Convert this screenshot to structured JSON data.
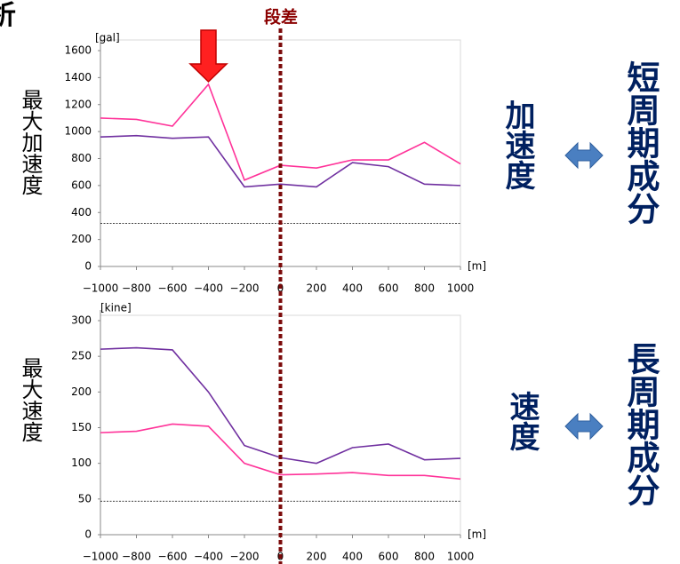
{
  "corner_text": "析",
  "step_label": "段差",
  "side_labels": {
    "accel_term": "加速度",
    "short_period": "短周期成分",
    "velocity_term": "速度",
    "long_period": "長周期成分"
  },
  "chart_data": [
    {
      "type": "line",
      "y_axis_title": "最大加速度",
      "y_unit": "[gal]",
      "x_unit": "[m]",
      "x": [
        -1000,
        -800,
        -600,
        -400,
        -200,
        0,
        200,
        400,
        600,
        800,
        1000
      ],
      "series": [
        {
          "color": "#ff3399",
          "values": [
            1100,
            1090,
            1040,
            1350,
            640,
            750,
            730,
            790,
            790,
            920,
            760
          ]
        },
        {
          "color": "#7030a0",
          "values": [
            960,
            970,
            950,
            960,
            590,
            610,
            590,
            770,
            740,
            610,
            600
          ]
        }
      ],
      "reference_line": 320,
      "xlim": [
        -1000,
        1000
      ],
      "xticks": [
        {
          "value": -1000,
          "label": "−1000"
        },
        {
          "value": -800,
          "label": "−800"
        },
        {
          "value": -600,
          "label": "−600"
        },
        {
          "value": -400,
          "label": "−400"
        },
        {
          "value": -200,
          "label": "−200"
        },
        0,
        200,
        400,
        600,
        800,
        1000
      ],
      "ylim": [
        0,
        1600
      ],
      "yticks": [
        0,
        200,
        400,
        600,
        800,
        1000,
        1200,
        1400,
        1600
      ]
    },
    {
      "type": "line",
      "y_axis_title": "最大速度",
      "y_unit": "[kine]",
      "x_unit": "[m]",
      "x": [
        -1000,
        -800,
        -600,
        -400,
        -200,
        0,
        200,
        400,
        600,
        800,
        1000
      ],
      "series": [
        {
          "color": "#ff3399",
          "values": [
            143,
            145,
            155,
            152,
            100,
            84,
            85,
            87,
            83,
            83,
            78
          ]
        },
        {
          "color": "#7030a0",
          "values": [
            260,
            262,
            259,
            200,
            125,
            108,
            100,
            122,
            127,
            105,
            107
          ]
        }
      ],
      "reference_line": 47,
      "xlim": [
        -1000,
        1000
      ],
      "xticks": [
        {
          "value": -1000,
          "label": "−1000"
        },
        {
          "value": -800,
          "label": "−800"
        },
        {
          "value": -600,
          "label": "−600"
        },
        {
          "value": -400,
          "label": "−400"
        },
        {
          "value": -200,
          "label": "−200"
        },
        0,
        200,
        400,
        600,
        800,
        1000
      ],
      "ylim": [
        0,
        300
      ],
      "yticks": [
        0,
        50,
        100,
        150,
        200,
        250,
        300
      ]
    }
  ]
}
